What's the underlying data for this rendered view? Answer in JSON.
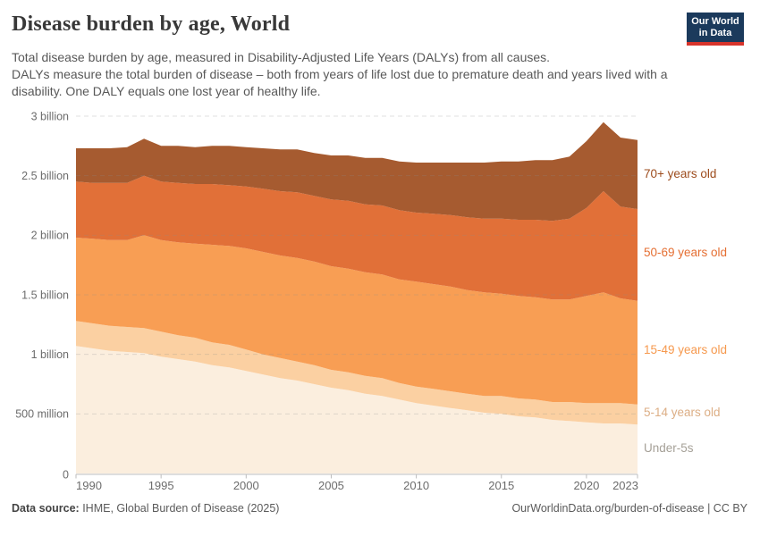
{
  "header": {
    "title": "Disease burden by age, World",
    "subtitle_line1": "Total disease burden by age, measured in Disability-Adjusted Life Years (DALYs) from all causes.",
    "subtitle_line2": "DALYs measure the total burden of disease – both from years of life lost due to premature death and years lived with a disability. One DALY equals one lost year of healthy life.",
    "logo": {
      "line1": "Our World",
      "line2": "in Data",
      "bg_color": "#1b3a5c",
      "accent_color": "#d7342b"
    }
  },
  "footer": {
    "source_label": "Data source:",
    "source_text": " IHME, Global Burden of Disease (2025)",
    "link_text": "OurWorldinData.org/burden-of-disease | CC BY"
  },
  "chart_data": {
    "type": "area",
    "stacked": true,
    "title": "Disease burden by age, World",
    "values_unit": "billion DALYs",
    "x_min": 1990,
    "x_max": 2023,
    "y_min": 0,
    "y_max": 3,
    "grid": true,
    "legend_position": "right",
    "years": [
      1990,
      1991,
      1992,
      1993,
      1994,
      1995,
      1996,
      1997,
      1998,
      1999,
      2000,
      2001,
      2002,
      2003,
      2004,
      2005,
      2006,
      2007,
      2008,
      2009,
      2010,
      2011,
      2012,
      2013,
      2014,
      2015,
      2016,
      2017,
      2018,
      2019,
      2020,
      2021,
      2022,
      2023
    ],
    "series": [
      {
        "id": "under-5s",
        "label": "Under-5s",
        "color": "#fbeede",
        "label_color": "#a5a097",
        "values": [
          1.07,
          1.05,
          1.03,
          1.02,
          1.01,
          0.98,
          0.96,
          0.94,
          0.91,
          0.89,
          0.86,
          0.83,
          0.8,
          0.78,
          0.75,
          0.72,
          0.7,
          0.67,
          0.65,
          0.62,
          0.59,
          0.57,
          0.55,
          0.53,
          0.51,
          0.5,
          0.48,
          0.47,
          0.45,
          0.44,
          0.43,
          0.42,
          0.42,
          0.41
        ]
      },
      {
        "id": "5-14",
        "label": "5-14 years old",
        "color": "#fbd0a2",
        "label_color": "#dcae85",
        "values": [
          0.21,
          0.21,
          0.21,
          0.21,
          0.21,
          0.21,
          0.2,
          0.2,
          0.19,
          0.19,
          0.18,
          0.17,
          0.17,
          0.16,
          0.16,
          0.15,
          0.15,
          0.15,
          0.15,
          0.14,
          0.14,
          0.14,
          0.14,
          0.14,
          0.14,
          0.15,
          0.15,
          0.15,
          0.15,
          0.16,
          0.16,
          0.17,
          0.17,
          0.17
        ]
      },
      {
        "id": "15-49",
        "label": "15-49 years old",
        "color": "#f89e54",
        "label_color": "#f6994e",
        "values": [
          0.7,
          0.71,
          0.72,
          0.73,
          0.78,
          0.77,
          0.78,
          0.79,
          0.82,
          0.83,
          0.85,
          0.86,
          0.86,
          0.87,
          0.87,
          0.87,
          0.87,
          0.87,
          0.87,
          0.87,
          0.88,
          0.88,
          0.88,
          0.87,
          0.87,
          0.86,
          0.86,
          0.86,
          0.86,
          0.86,
          0.9,
          0.93,
          0.88,
          0.87
        ]
      },
      {
        "id": "50-69",
        "label": "50-69 years old",
        "color": "#e17038",
        "label_color": "#e56f33",
        "values": [
          0.47,
          0.47,
          0.48,
          0.48,
          0.5,
          0.49,
          0.5,
          0.5,
          0.51,
          0.51,
          0.52,
          0.53,
          0.54,
          0.55,
          0.55,
          0.56,
          0.57,
          0.57,
          0.58,
          0.58,
          0.58,
          0.59,
          0.6,
          0.61,
          0.62,
          0.63,
          0.64,
          0.65,
          0.66,
          0.68,
          0.74,
          0.85,
          0.77,
          0.77
        ]
      },
      {
        "id": "70-plus",
        "label": "70+ years old",
        "color": "#a65b30",
        "label_color": "#9d4c1d",
        "values": [
          0.28,
          0.29,
          0.29,
          0.3,
          0.31,
          0.3,
          0.31,
          0.31,
          0.32,
          0.33,
          0.33,
          0.34,
          0.35,
          0.36,
          0.36,
          0.37,
          0.38,
          0.39,
          0.4,
          0.41,
          0.42,
          0.43,
          0.44,
          0.46,
          0.47,
          0.48,
          0.49,
          0.5,
          0.51,
          0.52,
          0.56,
          0.58,
          0.58,
          0.58
        ]
      }
    ],
    "y_ticks": [
      {
        "value": 3,
        "label": "3 billion"
      },
      {
        "value": 2.5,
        "label": "2.5 billion"
      },
      {
        "value": 2,
        "label": "2 billion"
      },
      {
        "value": 1.5,
        "label": "1.5 billion"
      },
      {
        "value": 1,
        "label": "1 billion"
      },
      {
        "value": 0.5,
        "label": "500 million"
      },
      {
        "value": 0,
        "label": "0"
      }
    ],
    "x_ticks": [
      1990,
      1995,
      2000,
      2005,
      2010,
      2015,
      2020,
      2023
    ]
  }
}
